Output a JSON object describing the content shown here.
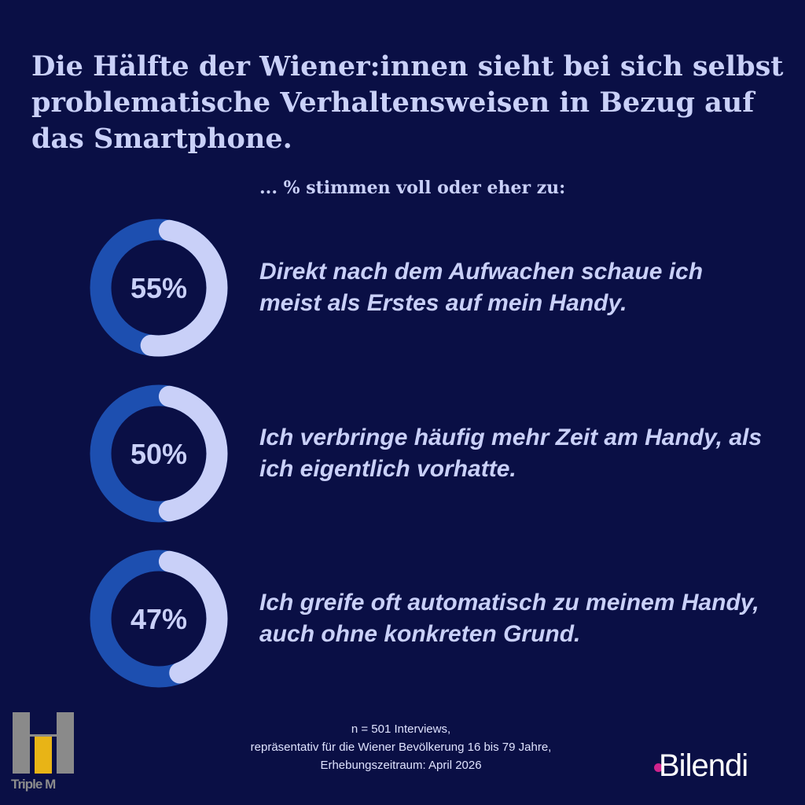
{
  "title": "Die Hälfte der Wiener:innen sieht bei sich selbst problematische Verhaltensweisen in Bezug auf das Smartphone.",
  "subtitle": "... % stimmen voll oder eher zu:",
  "colors": {
    "background": "#0a0f45",
    "agree": "#c9d0f8",
    "rest": "#1d4fb0"
  },
  "chart_data": {
    "type": "pie",
    "variant": "donut",
    "items": [
      {
        "value": 55,
        "label": "55%",
        "statement": "Direkt nach dem Aufwachen schaue ich meist als Erstes auf mein Handy."
      },
      {
        "value": 50,
        "label": "50%",
        "statement": "Ich verbringe häufig mehr Zeit am Handy, als ich eigentlich vorhatte."
      },
      {
        "value": 47,
        "label": "47%",
        "statement": "Ich greife oft automatisch zu meinem Handy, auch ohne konkreten Grund."
      }
    ]
  },
  "footer": {
    "line1": "n = 501 Interviews,",
    "line2": "repräsentativ für die Wiener Bevölkerung 16 bis 79 Jahre,",
    "line3": "Erhebungszeitraum: April 2026"
  },
  "logos": {
    "left": "Triple M",
    "right": "Bilendi"
  }
}
